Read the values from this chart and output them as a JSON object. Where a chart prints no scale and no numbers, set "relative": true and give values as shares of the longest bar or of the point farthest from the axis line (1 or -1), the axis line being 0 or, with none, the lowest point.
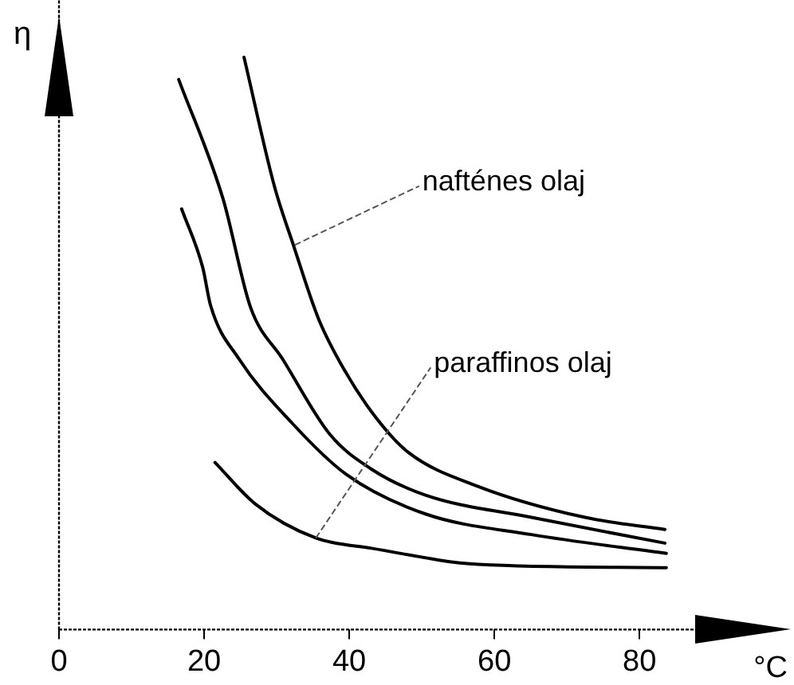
{
  "chart_data": {
    "type": "line",
    "xlabel": "°C",
    "ylabel": "η",
    "relative": true,
    "xlim": [
      0,
      98
    ],
    "xticks": [
      0,
      20,
      40,
      60,
      80
    ],
    "grid": false,
    "legend": false,
    "marker": "none",
    "line_style": "solid",
    "series": [
      {
        "color": "#000000",
        "x": [
          25.5,
          29.7,
          32.3,
          35.8,
          39.4,
          43.7,
          48.1,
          57.8,
          72.5,
          83.5
        ],
        "values": [
          1.0,
          0.774,
          0.672,
          0.542,
          0.452,
          0.37,
          0.31,
          0.25,
          0.196,
          0.175
        ]
      },
      {
        "color": "#000000",
        "x": [
          16.5,
          22.6,
          26.4,
          30.8,
          37.4,
          43.1,
          50.5,
          65.1,
          83.5
        ],
        "values": [
          0.961,
          0.753,
          0.563,
          0.473,
          0.34,
          0.28,
          0.235,
          0.196,
          0.151
        ]
      },
      {
        "color": "#000000",
        "x": [
          16.9,
          19.8,
          20.9,
          24.8,
          32.1,
          39.6,
          50.5,
          65.1,
          83.7
        ],
        "values": [
          0.735,
          0.633,
          0.566,
          0.473,
          0.361,
          0.271,
          0.202,
          0.166,
          0.133
        ]
      },
      {
        "color": "#000000",
        "x": [
          21.5,
          27.0,
          35.4,
          43.1,
          57.8,
          83.7
        ],
        "values": [
          0.292,
          0.22,
          0.16,
          0.142,
          0.114,
          0.108
        ]
      }
    ],
    "annotations": [
      {
        "text": "nafténes olaj",
        "x": 32.5,
        "y": 0.672
      },
      {
        "text": "paraffinos olaj",
        "x": 35.4,
        "y": 0.16
      }
    ]
  }
}
